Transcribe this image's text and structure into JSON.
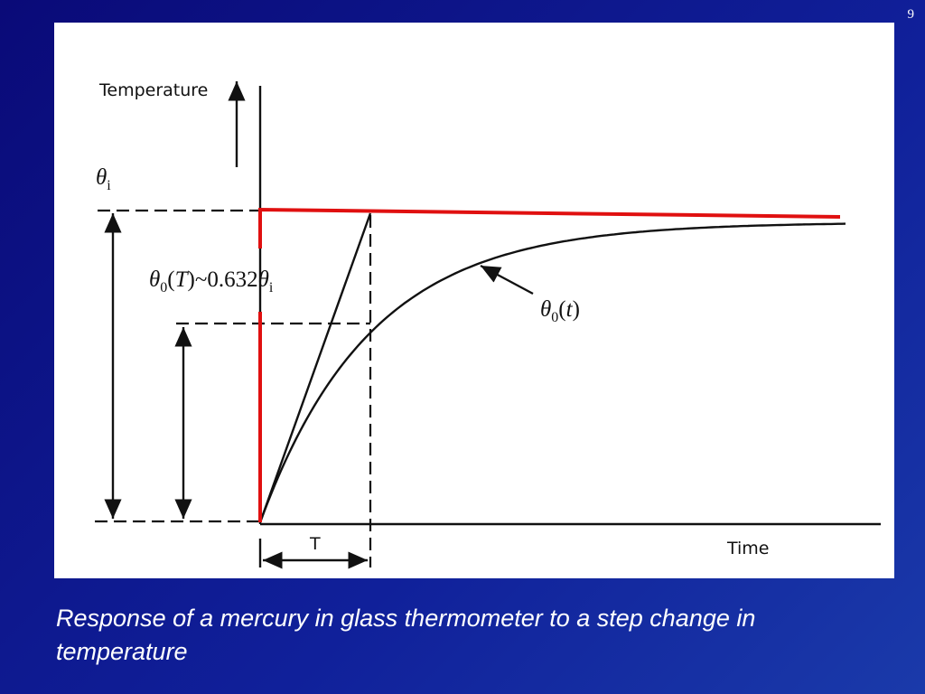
{
  "slide_number": "9",
  "diagram": {
    "y_axis_label": "Temperature",
    "x_axis_label": "Time",
    "time_constant_label": "T",
    "initial_label": [
      {
        "it": "θ"
      },
      {
        "sub": "i"
      }
    ],
    "point_label": [
      {
        "it": "θ"
      },
      {
        "sub": "0"
      },
      {
        "text": "("
      },
      {
        "it": "T"
      },
      {
        "text": ")~0.632"
      },
      {
        "it": "θ"
      },
      {
        "sub": "i"
      }
    ],
    "curve_label": [
      {
        "it": "θ"
      },
      {
        "sub": "0"
      },
      {
        "text": "("
      },
      {
        "it": "t"
      },
      {
        "text": ")"
      }
    ]
  },
  "caption": "Response of a mercury in glass thermometer to a step change in temperature"
}
